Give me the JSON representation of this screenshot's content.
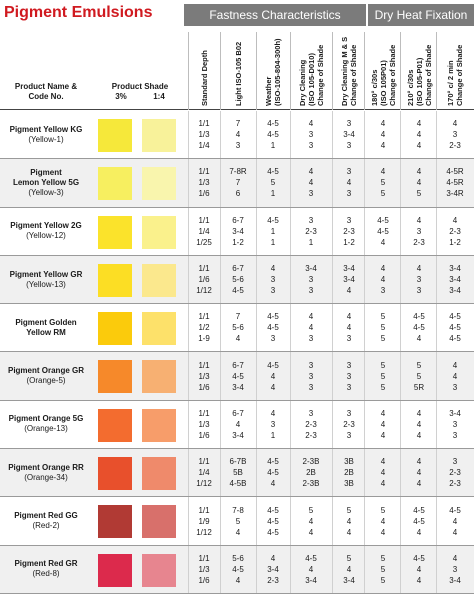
{
  "title": "Pigment Emulsions",
  "bands": {
    "fastness": "Fastness Characteristics",
    "dry_heat": "Dry Heat Fixation"
  },
  "headers": {
    "product_name": [
      "Product Name &",
      "Code No."
    ],
    "product_shade": "Product Shade",
    "shade_3": "3%",
    "shade_14": "1:4",
    "columns": [
      [
        "Standard Depth"
      ],
      [
        "Light ISO-105 B02"
      ],
      [
        "Weather",
        "(ISO-105-804-300h)"
      ],
      [
        "Dry Cleaning",
        "(ISO 105-D010)",
        "Change of Shade"
      ],
      [
        "Dry Cleaning M & S",
        "Change of Shade"
      ],
      [
        "180° c/30s",
        "(ISO 105P01)",
        "Change of Shade"
      ],
      [
        "210° c/30s",
        "(ISO 105-P01)",
        "Change of Shade"
      ],
      [
        "170° c/ 2 min",
        "Change of Shade"
      ]
    ]
  },
  "rows": [
    {
      "name": [
        "Pigment Yellow KG"
      ],
      "code": "(Yellow-1)",
      "swatch_3": "#f6e83a",
      "swatch_14": "#f8f29a",
      "cols": [
        [
          "1/1",
          "1/3",
          "1/4"
        ],
        [
          "7",
          "4",
          "3"
        ],
        [
          "4-5",
          "4-5",
          "1"
        ],
        [
          "4",
          "3",
          "3"
        ],
        [
          "3",
          "3-4",
          "3"
        ],
        [
          "4",
          "4",
          "4"
        ],
        [
          "4",
          "4",
          "4"
        ],
        [
          "4",
          "3",
          "2-3"
        ]
      ]
    },
    {
      "name": [
        "Pigment",
        "Lemon Yellow 5G"
      ],
      "code": "(Yellow-3)",
      "swatch_3": "#f7ef60",
      "swatch_14": "#f9f5ad",
      "cols": [
        [
          "1/1",
          "1/3",
          "1/6"
        ],
        [
          "7-8R",
          "7",
          "6"
        ],
        [
          "4-5",
          "5",
          "1"
        ],
        [
          "4",
          "4",
          "3"
        ],
        [
          "3",
          "4",
          "3"
        ],
        [
          "4",
          "5",
          "5"
        ],
        [
          "4",
          "4",
          "5"
        ],
        [
          "4-5R",
          "4-5R",
          "3-4R"
        ]
      ]
    },
    {
      "name": [
        "Pigment Yellow 2G"
      ],
      "code": "(Yellow-12)",
      "swatch_3": "#fbe32b",
      "swatch_14": "#faf18c",
      "cols": [
        [
          "1/1",
          "1/4",
          "1/25"
        ],
        [
          "6-7",
          "3-4",
          "1-2"
        ],
        [
          "4-5",
          "1",
          "1"
        ],
        [
          "3",
          "2-3",
          "1"
        ],
        [
          "3",
          "2-3",
          "1-2"
        ],
        [
          "4-5",
          "4-5",
          "4"
        ],
        [
          "4",
          "3",
          "2-3"
        ],
        [
          "4",
          "2-3",
          "1-2"
        ]
      ]
    },
    {
      "name": [
        "Pigment Yellow GR"
      ],
      "code": "(Yellow-13)",
      "swatch_3": "#fcde24",
      "swatch_14": "#fbe88d",
      "cols": [
        [
          "1/1",
          "1/6",
          "1/12"
        ],
        [
          "6-7",
          "5-6",
          "4-5"
        ],
        [
          "4",
          "3",
          "3"
        ],
        [
          "3-4",
          "3",
          "3"
        ],
        [
          "3-4",
          "3-4",
          "4"
        ],
        [
          "4",
          "4",
          "3"
        ],
        [
          "4",
          "3",
          "3"
        ],
        [
          "3-4",
          "3-4",
          "3-4"
        ]
      ]
    },
    {
      "name": [
        "Pigment Golden",
        "Yellow RM"
      ],
      "code": "",
      "swatch_3": "#fbcb0c",
      "swatch_14": "#fde16a",
      "cols": [
        [
          "1/1",
          "1/2",
          "1-9"
        ],
        [
          "7",
          "5-6",
          "4"
        ],
        [
          "4-5",
          "4-5",
          "3"
        ],
        [
          "4",
          "4",
          "3"
        ],
        [
          "4",
          "4",
          "3"
        ],
        [
          "5",
          "5",
          "5"
        ],
        [
          "4-5",
          "4-5",
          "4"
        ],
        [
          "4-5",
          "4-5",
          "4-5"
        ]
      ]
    },
    {
      "name": [
        "Pigment Orange GR"
      ],
      "code": "(Orange-5)",
      "swatch_3": "#f6892a",
      "swatch_14": "#f7b072",
      "cols": [
        [
          "1/1",
          "1/3",
          "1/6"
        ],
        [
          "6-7",
          "4-5",
          "3-4"
        ],
        [
          "4-5",
          "4",
          "4"
        ],
        [
          "3",
          "3",
          "3"
        ],
        [
          "3",
          "3",
          "3"
        ],
        [
          "5",
          "5",
          "5"
        ],
        [
          "5",
          "5",
          "5R"
        ],
        [
          "4",
          "4",
          "3"
        ]
      ]
    },
    {
      "name": [
        "Pigment Orange 5G"
      ],
      "code": "(Orange-13)",
      "swatch_3": "#f36c2f",
      "swatch_14": "#f79d6a",
      "cols": [
        [
          "1/1",
          "1/3",
          "1/6"
        ],
        [
          "6-7",
          "4",
          "3-4"
        ],
        [
          "4",
          "3",
          "1"
        ],
        [
          "3",
          "2-3",
          "2-3"
        ],
        [
          "3",
          "2-3",
          "3"
        ],
        [
          "4",
          "4",
          "4"
        ],
        [
          "4",
          "4",
          "4"
        ],
        [
          "3-4",
          "3",
          "3"
        ]
      ]
    },
    {
      "name": [
        "Pigment Orange RR"
      ],
      "code": "(Orange-34)",
      "swatch_3": "#e8502c",
      "swatch_14": "#ef8a6b",
      "cols": [
        [
          "1/1",
          "1/4",
          "1/12"
        ],
        [
          "6-7B",
          "5B",
          "4-5B"
        ],
        [
          "4-5",
          "4-5",
          "4"
        ],
        [
          "2-3B",
          "2B",
          "2-3B"
        ],
        [
          "3B",
          "2B",
          "3B"
        ],
        [
          "4",
          "4",
          "4"
        ],
        [
          "4",
          "4",
          "4"
        ],
        [
          "3",
          "2-3",
          "2-3"
        ]
      ]
    },
    {
      "name": [
        "Pigment Red GG"
      ],
      "code": "(Red-2)",
      "swatch_3": "#b13a34",
      "swatch_14": "#d8706b",
      "cols": [
        [
          "1/1",
          "1/9",
          "1/12"
        ],
        [
          "7-8",
          "5",
          "4"
        ],
        [
          "4-5",
          "4-5",
          "4-5"
        ],
        [
          "5",
          "4",
          "4"
        ],
        [
          "5",
          "4",
          "4"
        ],
        [
          "5",
          "4",
          "4"
        ],
        [
          "4-5",
          "4-5",
          "4"
        ],
        [
          "4-5",
          "4",
          "4"
        ]
      ]
    },
    {
      "name": [
        "Pigment Red GR"
      ],
      "code": "(Red-8)",
      "swatch_3": "#dc2a4c",
      "swatch_14": "#e7858f",
      "cols": [
        [
          "1/1",
          "1/3",
          "1/6"
        ],
        [
          "5-6",
          "4-5",
          "4"
        ],
        [
          "4",
          "3-4",
          "2-3"
        ],
        [
          "4-5",
          "4",
          "3-4"
        ],
        [
          "5",
          "4",
          "3-4"
        ],
        [
          "5",
          "5",
          "5"
        ],
        [
          "4-5",
          "4",
          "4"
        ],
        [
          "4",
          "3",
          "3-4"
        ]
      ]
    }
  ]
}
